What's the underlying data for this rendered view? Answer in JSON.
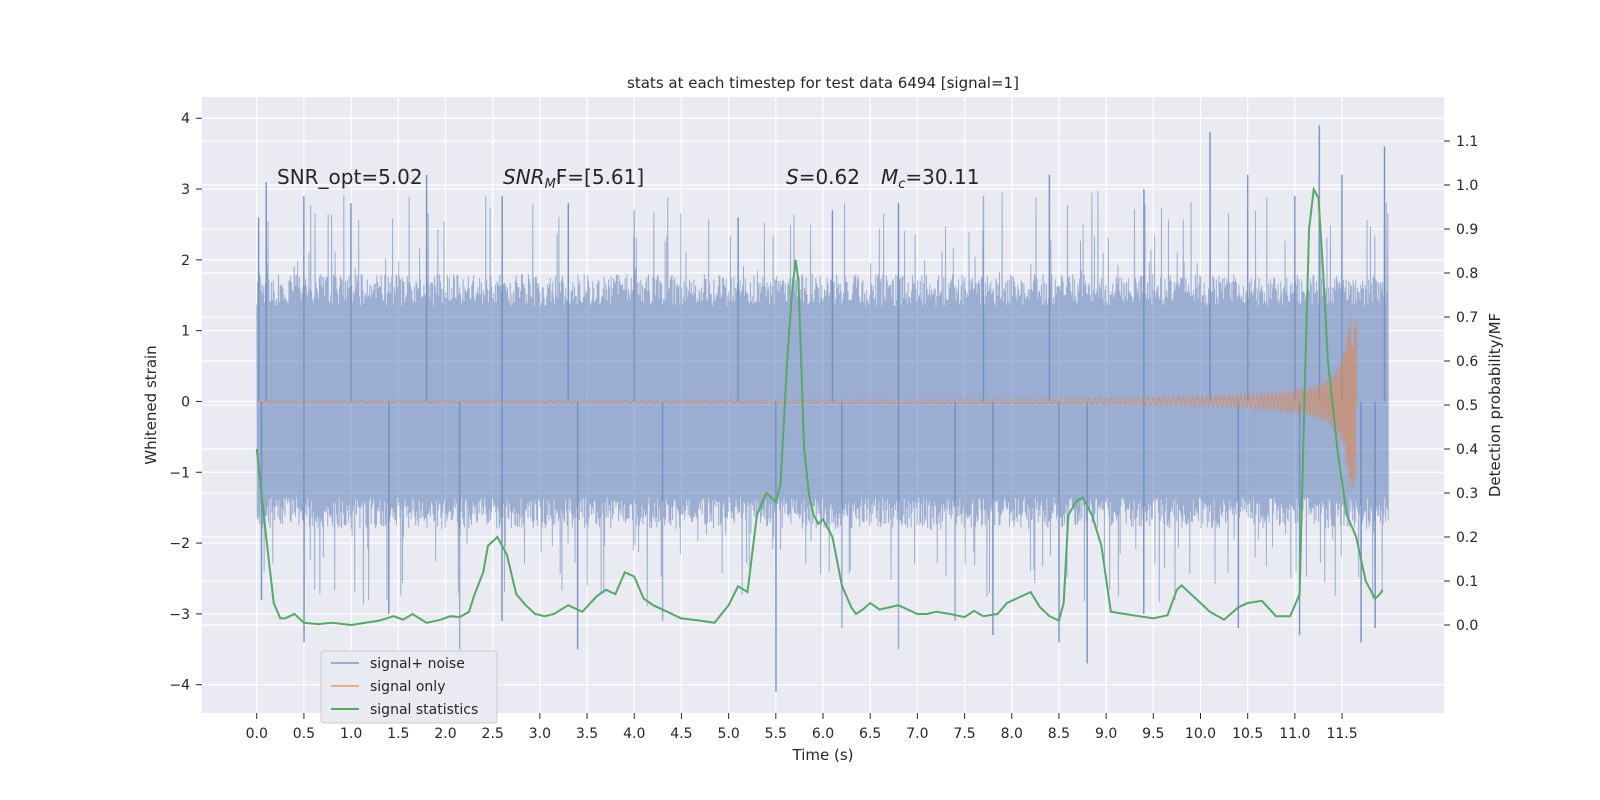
{
  "chart_data": {
    "type": "line",
    "title": "stats at each timestep for test data 6494 [signal=1]",
    "xlabel": "Time (s)",
    "ylabel": "Whitened strain",
    "y2label": "Detection probability/MF",
    "xlim": [
      -0.58,
      12.58
    ],
    "ylim": [
      -4.4,
      4.3
    ],
    "y2lim": [
      -0.2,
      1.2
    ],
    "x_ticks": [
      0.0,
      0.5,
      1.0,
      1.5,
      2.0,
      2.5,
      3.0,
      3.5,
      4.0,
      4.5,
      5.0,
      5.5,
      6.0,
      6.5,
      7.0,
      7.5,
      8.0,
      8.5,
      9.0,
      9.5,
      10.0,
      10.5,
      11.0,
      11.5
    ],
    "x_tick_labels": [
      "0.0",
      "0.5",
      "1.0",
      "1.5",
      "2.0",
      "2.5",
      "3.0",
      "3.5",
      "4.0",
      "4.5",
      "5.0",
      "5.5",
      "6.0",
      "6.5",
      "7.0",
      "7.5",
      "8.0",
      "8.5",
      "9.0",
      "9.5",
      "10.0",
      "10.5",
      "11.0",
      "11.5"
    ],
    "y_ticks": [
      4,
      3,
      2,
      1,
      0,
      -1,
      -2,
      -3,
      -4
    ],
    "y_tick_labels": [
      "4",
      "3",
      "2",
      "1",
      "0",
      "−1",
      "−2",
      "−3",
      "−4"
    ],
    "y2_ticks": [
      1.1,
      1.0,
      0.9,
      0.8,
      0.7,
      0.6,
      0.5,
      0.4,
      0.3,
      0.2,
      0.1,
      0.0
    ],
    "y2_tick_labels": [
      "1.1",
      "1.0",
      "0.9",
      "0.8",
      "0.7",
      "0.6",
      "0.5",
      "0.4",
      "0.3",
      "0.2",
      "0.1",
      "0.0"
    ],
    "grid": true,
    "legend_position": "lower-left",
    "annotations": {
      "snr_opt": "SNR_opt=5.02",
      "snr_mf_main": "SNR",
      "snr_mf_sub": "M",
      "snr_mf_rest": "F=[5.61]",
      "s_label": "S",
      "s_value": "=0.62",
      "mc_main": "M",
      "mc_sub": "c",
      "mc_value": "=30.11"
    },
    "colors": {
      "plot_bg": "#EAEAF2",
      "grid": "#FFFFFF",
      "noise": "#4C72B0",
      "signal": "#DD8452",
      "stats": "#55A868"
    },
    "series": [
      {
        "name": "signal+ noise",
        "axis": "left",
        "style": "dense-noise",
        "x_range": [
          0.0,
          11.99
        ],
        "band_upper": 1.8,
        "band_lower": -1.8,
        "peaks_upper": [
          [
            0.02,
            2.6
          ],
          [
            0.1,
            3.1
          ],
          [
            0.5,
            2.9
          ],
          [
            1.0,
            2.8
          ],
          [
            1.8,
            3.2
          ],
          [
            2.6,
            2.9
          ],
          [
            3.3,
            2.8
          ],
          [
            4.0,
            2.7
          ],
          [
            5.1,
            2.6
          ],
          [
            6.1,
            2.7
          ],
          [
            6.8,
            2.8
          ],
          [
            7.7,
            2.9
          ],
          [
            8.4,
            3.2
          ],
          [
            9.4,
            3.0
          ],
          [
            10.1,
            3.8
          ],
          [
            10.5,
            3.2
          ],
          [
            11.0,
            2.9
          ],
          [
            11.26,
            3.9
          ],
          [
            11.5,
            3.2
          ],
          [
            11.95,
            3.6
          ]
        ],
        "peaks_lower": [
          [
            0.05,
            -2.8
          ],
          [
            0.5,
            -3.4
          ],
          [
            1.4,
            -3.0
          ],
          [
            2.15,
            -3.5
          ],
          [
            2.6,
            -3.1
          ],
          [
            3.4,
            -3.5
          ],
          [
            4.3,
            -3.1
          ],
          [
            5.5,
            -4.1
          ],
          [
            6.2,
            -3.2
          ],
          [
            6.8,
            -3.5
          ],
          [
            7.4,
            -3.1
          ],
          [
            7.8,
            -3.3
          ],
          [
            8.5,
            -3.4
          ],
          [
            8.8,
            -3.7
          ],
          [
            9.4,
            -3.0
          ],
          [
            10.4,
            -3.2
          ],
          [
            11.05,
            -3.3
          ],
          [
            11.7,
            -3.4
          ],
          [
            11.85,
            -3.2
          ]
        ]
      },
      {
        "name": "signal only",
        "axis": "left",
        "style": "chirp",
        "x_range": [
          0.0,
          11.68
        ],
        "merger_time": 11.65,
        "peak_amplitude": 1.2
      },
      {
        "name": "signal statistics",
        "axis": "right",
        "x": [
          0.0,
          0.1,
          0.18,
          0.25,
          0.3,
          0.35,
          0.4,
          0.5,
          0.65,
          0.8,
          1.0,
          1.15,
          1.3,
          1.45,
          1.55,
          1.65,
          1.8,
          1.95,
          2.05,
          2.15,
          2.25,
          2.3,
          2.4,
          2.45,
          2.55,
          2.65,
          2.75,
          2.85,
          2.95,
          3.05,
          3.15,
          3.3,
          3.45,
          3.6,
          3.7,
          3.8,
          3.9,
          4.0,
          4.1,
          4.2,
          4.35,
          4.5,
          4.7,
          4.85,
          5.0,
          5.1,
          5.2,
          5.3,
          5.4,
          5.5,
          5.55,
          5.62,
          5.67,
          5.71,
          5.74,
          5.8,
          5.85,
          5.9,
          5.95,
          6.0,
          6.1,
          6.2,
          6.3,
          6.35,
          6.42,
          6.5,
          6.6,
          6.7,
          6.8,
          6.9,
          7.0,
          7.1,
          7.2,
          7.35,
          7.5,
          7.6,
          7.7,
          7.85,
          7.95,
          8.1,
          8.2,
          8.3,
          8.4,
          8.5,
          8.55,
          8.6,
          8.68,
          8.75,
          8.85,
          8.95,
          9.05,
          9.2,
          9.5,
          9.65,
          9.75,
          9.8,
          9.9,
          10.0,
          10.1,
          10.25,
          10.4,
          10.5,
          10.65,
          10.8,
          10.95,
          11.05,
          11.1,
          11.15,
          11.2,
          11.25,
          11.3,
          11.35,
          11.45,
          11.55,
          11.65,
          11.75,
          11.85,
          11.9,
          11.93
        ],
        "y": [
          0.4,
          0.2,
          0.05,
          0.015,
          0.015,
          0.02,
          0.025,
          0.005,
          0.002,
          0.005,
          0.0,
          0.005,
          0.01,
          0.02,
          0.012,
          0.025,
          0.005,
          0.012,
          0.02,
          0.018,
          0.03,
          0.065,
          0.12,
          0.18,
          0.2,
          0.16,
          0.07,
          0.045,
          0.025,
          0.02,
          0.025,
          0.045,
          0.03,
          0.065,
          0.08,
          0.07,
          0.12,
          0.11,
          0.06,
          0.045,
          0.03,
          0.015,
          0.01,
          0.005,
          0.045,
          0.088,
          0.075,
          0.25,
          0.3,
          0.28,
          0.32,
          0.6,
          0.75,
          0.83,
          0.78,
          0.4,
          0.3,
          0.25,
          0.23,
          0.24,
          0.2,
          0.09,
          0.04,
          0.025,
          0.035,
          0.05,
          0.035,
          0.04,
          0.045,
          0.035,
          0.025,
          0.025,
          0.03,
          0.025,
          0.018,
          0.032,
          0.02,
          0.025,
          0.05,
          0.065,
          0.075,
          0.04,
          0.02,
          0.01,
          0.05,
          0.25,
          0.28,
          0.29,
          0.25,
          0.18,
          0.03,
          0.025,
          0.015,
          0.022,
          0.08,
          0.09,
          0.07,
          0.05,
          0.03,
          0.012,
          0.04,
          0.05,
          0.055,
          0.02,
          0.02,
          0.07,
          0.5,
          0.9,
          0.99,
          0.97,
          0.8,
          0.6,
          0.4,
          0.25,
          0.2,
          0.1,
          0.06,
          0.07,
          0.08
        ]
      }
    ]
  }
}
